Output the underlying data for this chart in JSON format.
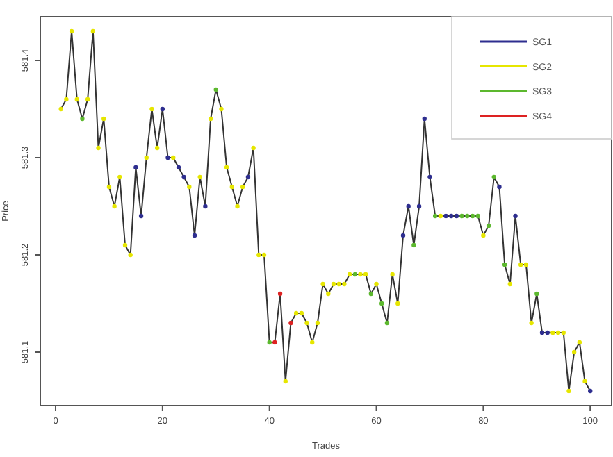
{
  "chart_data": {
    "type": "line",
    "xlabel": "Trades",
    "ylabel": "Price",
    "xlim": [
      -2.86,
      104
    ],
    "ylim": [
      581.045,
      581.445
    ],
    "xticks": [
      0,
      20,
      40,
      60,
      80,
      100
    ],
    "yticks": [
      581.1,
      581.2,
      581.3,
      581.4
    ],
    "legend": "top right",
    "grid": false,
    "series": [
      {
        "color": "#333333",
        "marker": "none",
        "x": [
          1,
          2,
          3,
          4,
          5,
          6,
          7,
          8,
          9,
          10,
          11,
          12,
          13,
          14,
          15,
          16,
          17,
          18,
          19,
          20,
          21,
          22,
          23,
          24,
          25,
          26,
          27,
          28,
          29,
          30,
          31,
          32,
          33,
          34,
          35,
          36,
          37,
          38,
          39,
          40,
          41,
          42,
          43,
          44,
          45,
          46,
          47,
          48,
          49,
          50,
          51,
          52,
          53,
          54,
          55,
          56,
          57,
          58,
          59,
          60,
          61,
          62,
          63,
          64,
          65,
          66,
          67,
          68,
          69,
          70,
          71,
          72,
          73,
          74,
          75,
          76,
          77,
          78,
          79,
          80,
          81,
          82,
          83,
          84,
          85,
          86,
          87,
          88,
          89,
          90,
          91,
          92,
          93,
          94,
          95,
          96,
          97,
          98,
          99,
          100
        ],
        "values": [
          581.35,
          581.36,
          581.43,
          581.36,
          581.34,
          581.36,
          581.43,
          581.31,
          581.34,
          581.27,
          581.25,
          581.28,
          581.21,
          581.2,
          581.29,
          581.24,
          581.3,
          581.35,
          581.31,
          581.35,
          581.3,
          581.3,
          581.29,
          581.28,
          581.27,
          581.22,
          581.28,
          581.25,
          581.34,
          581.37,
          581.35,
          581.29,
          581.27,
          581.25,
          581.27,
          581.28,
          581.31,
          581.2,
          581.2,
          581.11,
          581.11,
          581.16,
          581.07,
          581.13,
          581.14,
          581.14,
          581.13,
          581.11,
          581.13,
          581.17,
          581.16,
          581.17,
          581.17,
          581.17,
          581.18,
          581.18,
          581.18,
          581.18,
          581.16,
          581.17,
          581.15,
          581.13,
          581.18,
          581.15,
          581.22,
          581.25,
          581.21,
          581.25,
          581.34,
          581.28,
          581.24,
          581.24,
          581.24,
          581.24,
          581.24,
          581.24,
          581.24,
          581.24,
          581.24,
          581.22,
          581.23,
          581.28,
          581.27,
          581.19,
          581.17,
          581.24,
          581.19,
          581.19,
          581.13,
          581.16,
          581.12,
          581.12,
          581.12,
          581.12,
          581.12,
          581.06,
          581.1,
          581.11,
          581.07,
          581.06
        ]
      },
      {
        "type": "scatter",
        "name": "SG1",
        "color": "#2e2e8f",
        "marker": "circle",
        "x": [
          15,
          16,
          20,
          21,
          23,
          24,
          26,
          28,
          36,
          65,
          66,
          68,
          69,
          70,
          73,
          74,
          75,
          83,
          86,
          91,
          92,
          100
        ],
        "values": [
          581.29,
          581.24,
          581.35,
          581.3,
          581.29,
          581.28,
          581.22,
          581.25,
          581.28,
          581.22,
          581.25,
          581.25,
          581.34,
          581.28,
          581.24,
          581.24,
          581.24,
          581.27,
          581.24,
          581.12,
          581.12,
          581.06
        ]
      },
      {
        "type": "scatter",
        "name": "SG2",
        "color": "#e6e600",
        "marker": "circle",
        "x": [
          1,
          2,
          3,
          4,
          6,
          7,
          8,
          9,
          10,
          11,
          12,
          13,
          14,
          17,
          18,
          19,
          22,
          25,
          27,
          29,
          31,
          32,
          33,
          34,
          35,
          37,
          38,
          39,
          43,
          45,
          46,
          47,
          48,
          49,
          50,
          51,
          52,
          53,
          54,
          55,
          57,
          58,
          60,
          63,
          64,
          72,
          80,
          85,
          87,
          88,
          89,
          93,
          94,
          95,
          96,
          97,
          98,
          99
        ],
        "values": [
          581.35,
          581.36,
          581.43,
          581.36,
          581.36,
          581.43,
          581.31,
          581.34,
          581.27,
          581.25,
          581.28,
          581.21,
          581.2,
          581.3,
          581.35,
          581.31,
          581.3,
          581.27,
          581.28,
          581.34,
          581.35,
          581.29,
          581.27,
          581.25,
          581.27,
          581.31,
          581.2,
          581.2,
          581.07,
          581.14,
          581.14,
          581.13,
          581.11,
          581.13,
          581.17,
          581.16,
          581.17,
          581.17,
          581.17,
          581.18,
          581.18,
          581.18,
          581.17,
          581.18,
          581.15,
          581.24,
          581.22,
          581.17,
          581.19,
          581.19,
          581.13,
          581.12,
          581.12,
          581.12,
          581.06,
          581.1,
          581.11,
          581.07
        ]
      },
      {
        "type": "scatter",
        "name": "SG3",
        "color": "#5cb82e",
        "marker": "circle",
        "x": [
          5,
          30,
          40,
          56,
          59,
          61,
          62,
          67,
          71,
          76,
          77,
          78,
          79,
          81,
          82,
          84,
          90
        ],
        "values": [
          581.34,
          581.37,
          581.11,
          581.18,
          581.16,
          581.15,
          581.13,
          581.21,
          581.24,
          581.24,
          581.24,
          581.24,
          581.24,
          581.23,
          581.28,
          581.19,
          581.16
        ]
      },
      {
        "type": "scatter",
        "name": "SG4",
        "color": "#dd2222",
        "marker": "circle",
        "x": [
          41,
          42,
          44
        ],
        "values": [
          581.11,
          581.16,
          581.13
        ]
      }
    ]
  }
}
